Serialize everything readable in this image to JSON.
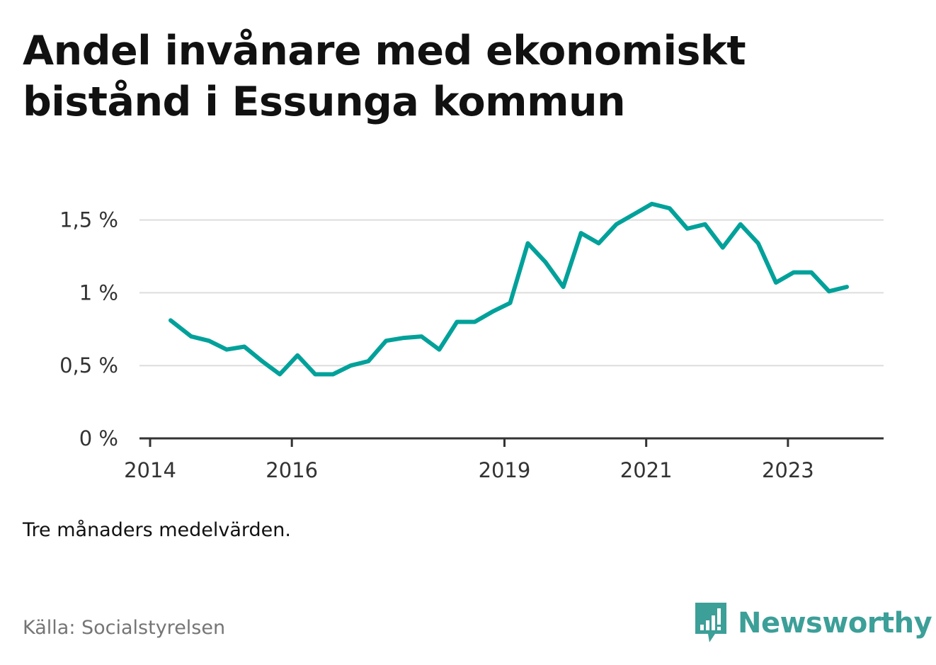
{
  "title": "Andel invånare med ekonomiskt bistånd i Essunga kommun",
  "note": "Tre månaders medelvärden.",
  "source": "Källa: Socialstyrelsen",
  "brand": {
    "name": "Newsworthy",
    "icon": "bar-chart-speech-bubble-icon",
    "color": "#3c9f98"
  },
  "chart_data": {
    "type": "line",
    "line_color": "#00a19a",
    "grid": true,
    "x_tick_labels": [
      "2014",
      "2016",
      "2019",
      "2021",
      "2023"
    ],
    "x_tick_values": [
      2014.0,
      2016.0,
      2019.0,
      2021.0,
      2023.0
    ],
    "xlim": [
      2013.85,
      2024.35
    ],
    "y_tick_labels": [
      "0 %",
      "0,5 %",
      "1 %",
      "1,5 %"
    ],
    "y_tick_values": [
      0,
      0.5,
      1.0,
      1.5
    ],
    "ylim": [
      0,
      1.6
    ],
    "series": [
      {
        "x": [
          2014.29,
          2014.58,
          2014.83,
          2015.08,
          2015.33,
          2015.58,
          2015.83,
          2016.08,
          2016.33,
          2016.58,
          2016.83,
          2017.08,
          2017.33,
          2017.58,
          2017.83,
          2018.08,
          2018.33,
          2018.58,
          2018.83,
          2019.08,
          2019.33,
          2019.58,
          2019.83,
          2020.08,
          2020.33,
          2020.58,
          2020.83,
          2021.08,
          2021.33,
          2021.58,
          2021.83,
          2022.08,
          2022.33,
          2022.58,
          2022.83,
          2023.08,
          2023.33,
          2023.58,
          2023.83
        ],
        "y": [
          0.81,
          0.7,
          0.67,
          0.61,
          0.63,
          0.53,
          0.44,
          0.57,
          0.44,
          0.44,
          0.5,
          0.53,
          0.67,
          0.69,
          0.7,
          0.61,
          0.8,
          0.8,
          0.87,
          0.93,
          1.34,
          1.21,
          1.04,
          1.41,
          1.34,
          1.47,
          1.54,
          1.61,
          1.58,
          1.44,
          1.47,
          1.31,
          1.47,
          1.34,
          1.07,
          1.14,
          1.14,
          1.01,
          1.04
        ]
      }
    ]
  }
}
